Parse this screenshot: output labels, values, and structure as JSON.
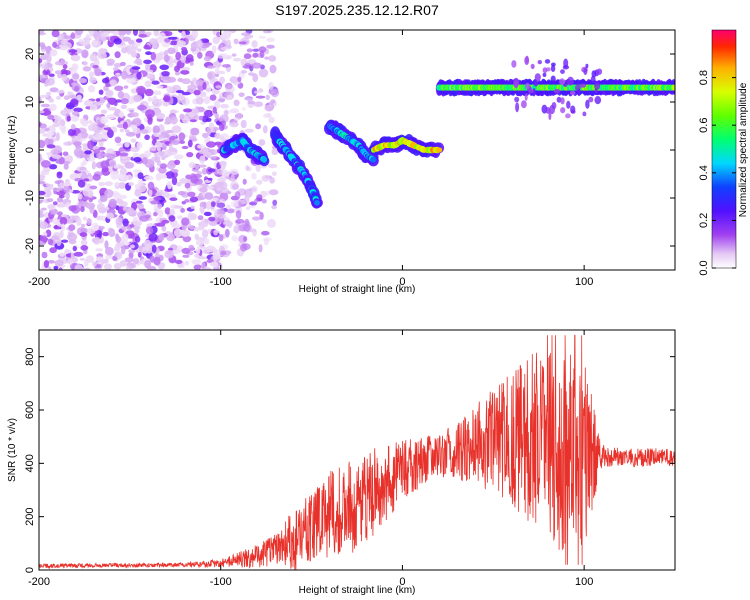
{
  "title": "S197.2025.235.12.12.R07",
  "chart_data": [
    {
      "type": "heatmap",
      "name": "spectrogram",
      "xlabel": "Height of straight line (km)",
      "ylabel": "Frequency (Hz)",
      "xlim": [
        -200,
        150
      ],
      "ylim": [
        -25,
        25
      ],
      "x_ticks": [
        -200,
        -100,
        0,
        100
      ],
      "y_ticks": [
        -20,
        -10,
        0,
        10,
        20
      ],
      "colorbar": {
        "label": "Normalized spectral amplitude",
        "range": [
          0,
          1
        ],
        "ticks": [
          0.0,
          0.2,
          0.4,
          0.6,
          0.8
        ]
      },
      "segments": [
        {
          "name": "noise-field",
          "x_range": [
            -200,
            -100
          ],
          "freq_range": [
            -25,
            25
          ],
          "level": 0.12
        },
        {
          "name": "noise-tail",
          "x_range": [
            -100,
            -70
          ],
          "freq_range": [
            -22,
            25
          ],
          "level": 0.05
        },
        {
          "name": "echo-1",
          "points": [
            [
              -98,
              0
            ],
            [
              -93,
              1
            ],
            [
              -88,
              2
            ],
            [
              -84,
              0
            ],
            [
              -80,
              -1
            ],
            [
              -76,
              -2
            ]
          ],
          "level": 0.38
        },
        {
          "name": "echo-2",
          "points": [
            [
              -70,
              3
            ],
            [
              -66,
              1
            ],
            [
              -62,
              -1
            ],
            [
              -58,
              -3
            ],
            [
              -54,
              -5
            ],
            [
              -50,
              -8
            ],
            [
              -47,
              -11
            ]
          ],
          "level": 0.36
        },
        {
          "name": "echo-3",
          "points": [
            [
              -40,
              5
            ],
            [
              -36,
              4
            ],
            [
              -32,
              3
            ],
            [
              -28,
              2
            ],
            [
              -24,
              1
            ],
            [
              -20,
              -1
            ],
            [
              -16,
              -2
            ]
          ],
          "level": 0.4
        },
        {
          "name": "echo-4",
          "points": [
            [
              -16,
              0
            ],
            [
              -10,
              1
            ],
            [
              -4,
              1
            ],
            [
              0,
              2
            ],
            [
              6,
              1
            ],
            [
              12,
              0
            ],
            [
              20,
              0
            ]
          ],
          "level": 0.75
        },
        {
          "name": "meteor-trail",
          "points": [
            [
              20,
              13
            ],
            [
              40,
              13
            ],
            [
              60,
              13
            ],
            [
              80,
              13
            ],
            [
              100,
              13
            ],
            [
              120,
              13
            ],
            [
              150,
              13
            ]
          ],
          "level": 0.6
        }
      ]
    },
    {
      "type": "line",
      "name": "snr",
      "xlabel": "Height of straight line (km)",
      "ylabel": "SNR (10 * v/v)",
      "xlim": [
        -200,
        150
      ],
      "ylim": [
        0,
        900
      ],
      "x_ticks": [
        -200,
        -100,
        0,
        100
      ],
      "y_ticks": [
        0,
        200,
        400,
        600,
        800
      ],
      "color": "#e8312a",
      "envelope": {
        "x": [
          -200,
          -120,
          -100,
          -80,
          -60,
          -50,
          -40,
          -30,
          -20,
          -10,
          0,
          10,
          20,
          30,
          40,
          50,
          60,
          70,
          80,
          90,
          100,
          110,
          120,
          130,
          140,
          150
        ],
        "y": [
          15,
          20,
          25,
          50,
          110,
          150,
          200,
          230,
          270,
          320,
          370,
          400,
          430,
          450,
          470,
          480,
          490,
          480,
          470,
          450,
          440,
          430,
          420,
          420,
          425,
          420
        ]
      },
      "noise_amplitude": {
        "x": [
          -200,
          -120,
          -100,
          -70,
          -60,
          -40,
          -20,
          0,
          20,
          40,
          60,
          70,
          80,
          100,
          110,
          150
        ],
        "y": [
          8,
          8,
          15,
          60,
          120,
          170,
          180,
          120,
          80,
          150,
          250,
          320,
          400,
          350,
          40,
          30
        ]
      }
    }
  ]
}
